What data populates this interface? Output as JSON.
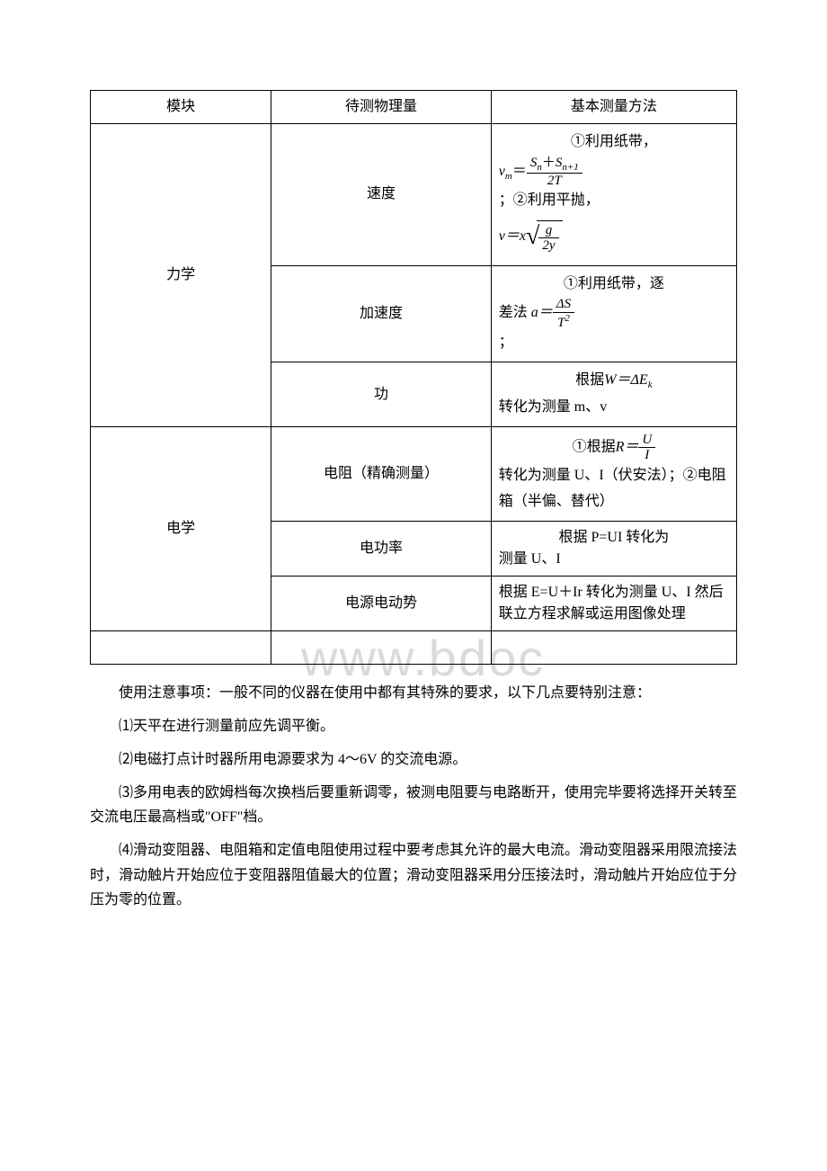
{
  "table": {
    "header": {
      "c1": "模块",
      "c2": "待测物理量",
      "c3": "基本测量方法"
    },
    "mech": {
      "label": "力学",
      "rows": {
        "speed": {
          "name": "速度",
          "pre1": "①利用纸带，",
          "eq1_lhs": "v",
          "eq1_sub": "m",
          "eq1_num": "S",
          "eq1_num_sub1": "n",
          "eq1_plus": "＋",
          "eq1_num2": "S",
          "eq1_num_sub2": "n+1",
          "eq1_den": "2T",
          "mid": "；②利用平抛，",
          "eq2_lhs": "v＝x",
          "eq2_num": "g",
          "eq2_den": "2y"
        },
        "accel": {
          "name": "加速度",
          "pre1": "①利用纸带，逐",
          "pre2": "差法",
          "eq_lhs": "a＝",
          "eq_num": "ΔS",
          "eq_den_base": "T",
          "eq_den_pow": "2",
          "tail": "；"
        },
        "work": {
          "name": "功",
          "pre": "根据",
          "eq": "W＝ΔE",
          "eq_sub": "k",
          "tail": "转化为测量 m、v"
        }
      }
    },
    "elec": {
      "label": "电学",
      "rows": {
        "res": {
          "name": "电阻（精确测量）",
          "pre": "①根据",
          "eq_lhs": "R＝",
          "eq_num": "U",
          "eq_den": "I",
          "tail": "转化为测量 U、I（伏安法）；②电阻箱（半偏、替代）"
        },
        "power": {
          "name": "电功率",
          "text": "根据 P=UI 转化为测量 U、I"
        },
        "emf": {
          "name": "电源电动势",
          "text": "根据 E=U＋Ir 转化为测量 U、I 然后联立方程求解或运用图像处理"
        }
      }
    }
  },
  "paragraphs": {
    "p0": "使用注意事项：一般不同的仪器在使用中都有其特殊的要求，以下几点要特别注意：",
    "p1": "⑴天平在进行测量前应先调平衡。",
    "p2": "⑵电磁打点计时器所用电源要求为 4～6V 的交流电源。",
    "p3": "⑶多用电表的欧姆档每次换档后要重新调零，被测电阻要与电路断开，使用完毕要将选择开关转至交流电压最高档或\"OFF\"档。",
    "p4": "⑷滑动变阻器、电阻箱和定值电阻使用过程中要考虑其允许的最大电流。滑动变阻器采用限流接法时，滑动触片开始应位于变阻器阻值最大的位置；滑动变阻器采用分压接法时，滑动触片开始应位于分压为零的位置。"
  },
  "watermark": "www.bdoc",
  "colors": {
    "text": "#000000",
    "border": "#000000",
    "background": "#ffffff",
    "watermark": "rgba(150,150,150,0.35)"
  }
}
